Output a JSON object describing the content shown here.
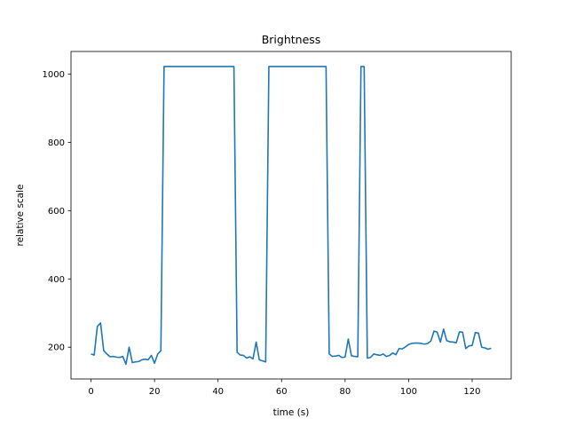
{
  "chart_data": {
    "type": "line",
    "title": "Brightness",
    "xlabel": "time (s)",
    "ylabel": "relative scale",
    "xlim": [
      -6.3,
      132.3
    ],
    "ylim": [
      107,
      1066
    ],
    "xticks": [
      0,
      20,
      40,
      60,
      80,
      100,
      120
    ],
    "yticks": [
      200,
      400,
      600,
      800,
      1000
    ],
    "grid": false,
    "colors": {
      "line": "#1f77b4"
    },
    "series": [
      {
        "x": [
          0,
          1,
          2,
          3,
          4,
          5,
          6,
          7,
          8,
          9,
          10,
          11,
          12,
          13,
          14,
          15,
          16,
          17,
          18,
          19,
          20,
          21,
          22,
          23,
          24,
          25,
          26,
          27,
          28,
          29,
          30,
          31,
          32,
          33,
          34,
          35,
          36,
          37,
          38,
          39,
          40,
          41,
          42,
          43,
          44,
          45,
          46,
          47,
          48,
          49,
          50,
          51,
          52,
          53,
          54,
          55,
          56,
          57,
          58,
          59,
          60,
          61,
          62,
          63,
          64,
          65,
          66,
          67,
          68,
          69,
          70,
          71,
          72,
          73,
          74,
          75,
          76,
          77,
          78,
          79,
          80,
          81,
          82,
          83,
          84,
          85,
          86,
          87,
          88,
          89,
          90,
          91,
          92,
          93,
          94,
          95,
          96,
          97,
          98,
          99,
          100,
          101,
          102,
          103,
          104,
          105,
          106,
          107,
          108,
          109,
          110,
          111,
          112,
          113,
          114,
          115,
          116,
          117,
          118,
          119,
          120,
          121,
          122,
          123,
          124,
          125,
          126
        ],
        "values": [
          180,
          177,
          261,
          271,
          190,
          180,
          172,
          173,
          171,
          170,
          173,
          150,
          200,
          155,
          157,
          158,
          163,
          165,
          163,
          176,
          153,
          180,
          190,
          1022,
          1022,
          1022,
          1022,
          1022,
          1022,
          1022,
          1022,
          1022,
          1022,
          1022,
          1022,
          1022,
          1022,
          1022,
          1022,
          1022,
          1022,
          1022,
          1022,
          1022,
          1022,
          1022,
          185,
          177,
          176,
          168,
          172,
          166,
          215,
          163,
          160,
          157,
          1022,
          1022,
          1022,
          1022,
          1022,
          1022,
          1022,
          1022,
          1022,
          1022,
          1022,
          1022,
          1022,
          1022,
          1022,
          1022,
          1022,
          1022,
          1022,
          180,
          173,
          174,
          176,
          170,
          171,
          224,
          175,
          173,
          172,
          1022,
          1022,
          168,
          170,
          180,
          178,
          176,
          180,
          173,
          176,
          183,
          178,
          196,
          195,
          201,
          208,
          211,
          212,
          212,
          211,
          209,
          211,
          218,
          247,
          244,
          215,
          253,
          219,
          216,
          215,
          213,
          245,
          244,
          196,
          204,
          205,
          243,
          241,
          200,
          198,
          194,
          197
        ]
      }
    ]
  }
}
